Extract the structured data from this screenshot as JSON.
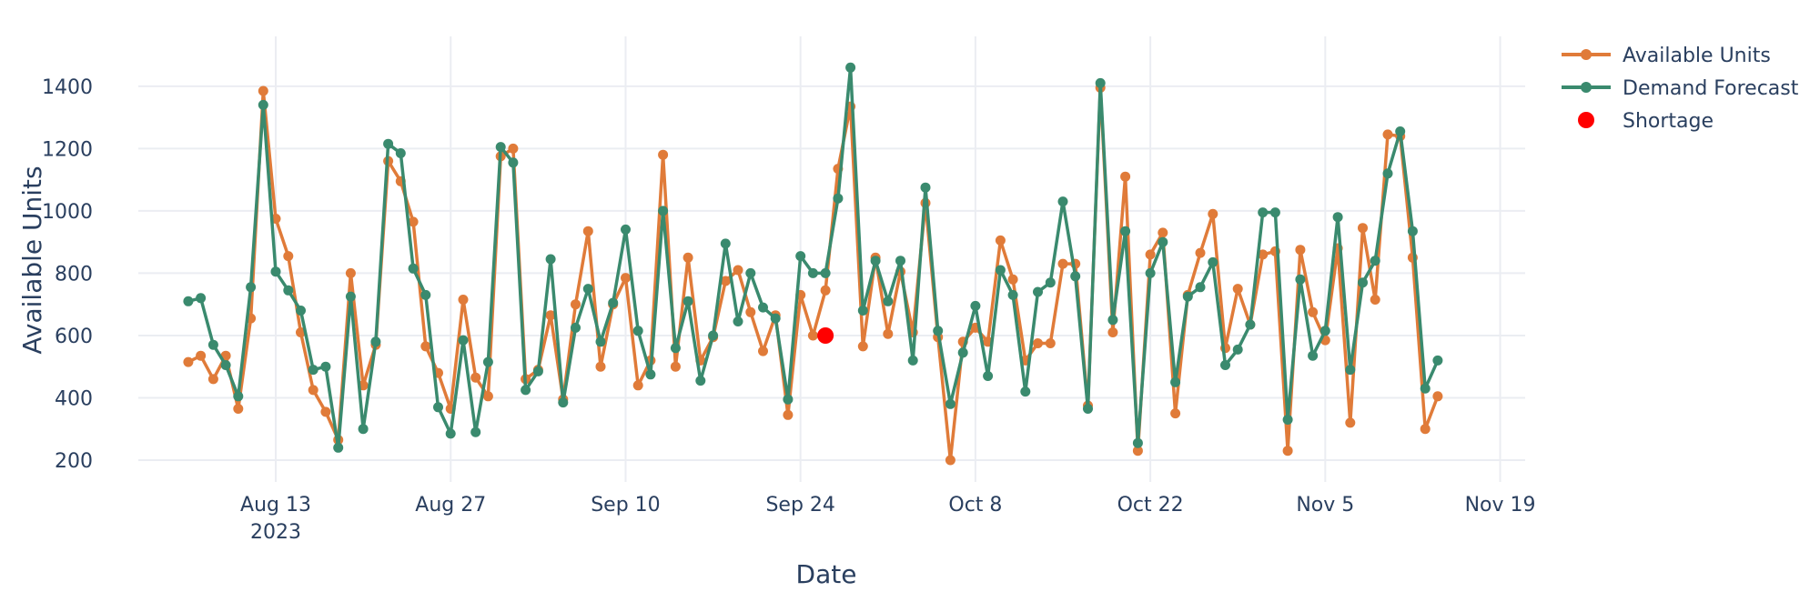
{
  "chart_data": {
    "type": "line",
    "xlabel": "Date",
    "ylabel": "Available Units",
    "ylim": [
      130,
      1560
    ],
    "xlim": [
      "2023-08-02",
      "2023-11-21"
    ],
    "yticks": [
      200,
      400,
      600,
      800,
      1000,
      1200,
      1400
    ],
    "xticks": [
      {
        "date": "2023-08-13",
        "label": "Aug 13",
        "sublabel": "2023"
      },
      {
        "date": "2023-08-27",
        "label": "Aug 27",
        "sublabel": ""
      },
      {
        "date": "2023-09-10",
        "label": "Sep 10",
        "sublabel": ""
      },
      {
        "date": "2023-09-24",
        "label": "Sep 24",
        "sublabel": ""
      },
      {
        "date": "2023-10-08",
        "label": "Oct 8",
        "sublabel": ""
      },
      {
        "date": "2023-10-22",
        "label": "Oct 22",
        "sublabel": ""
      },
      {
        "date": "2023-11-05",
        "label": "Nov 5",
        "sublabel": ""
      },
      {
        "date": "2023-11-19",
        "label": "Nov 19",
        "sublabel": ""
      }
    ],
    "start_date": "2023-08-06",
    "series": [
      {
        "name": "Available Units",
        "color": "#e07b39",
        "values": [
          515,
          535,
          460,
          535,
          365,
          655,
          1385,
          975,
          855,
          610,
          425,
          355,
          265,
          800,
          440,
          570,
          1160,
          1095,
          965,
          565,
          480,
          365,
          715,
          465,
          405,
          1175,
          1200,
          460,
          490,
          665,
          395,
          700,
          935,
          500,
          700,
          785,
          440,
          520,
          1180,
          500,
          850,
          520,
          595,
          775,
          810,
          675,
          550,
          665,
          345,
          730,
          600,
          745,
          1135,
          1335,
          565,
          850,
          605,
          805,
          610,
          1025,
          595,
          200,
          580,
          625,
          580,
          905,
          780,
          520,
          575,
          575,
          830,
          830,
          375,
          1395,
          610,
          1110,
          230,
          860,
          930,
          350,
          730,
          865,
          990,
          560,
          750,
          635,
          860,
          870,
          230,
          875,
          675,
          585,
          880,
          320,
          945,
          715,
          1245,
          1240,
          850,
          300,
          405
        ]
      },
      {
        "name": "Demand Forecast",
        "color": "#3a8a6e",
        "values": [
          710,
          720,
          570,
          505,
          405,
          755,
          1340,
          805,
          745,
          680,
          490,
          500,
          240,
          725,
          300,
          580,
          1215,
          1185,
          815,
          730,
          370,
          285,
          585,
          290,
          515,
          1205,
          1155,
          425,
          485,
          845,
          385,
          625,
          750,
          580,
          705,
          940,
          615,
          475,
          1000,
          560,
          710,
          455,
          600,
          895,
          645,
          800,
          690,
          655,
          395,
          855,
          800,
          800,
          1040,
          1460,
          680,
          840,
          710,
          840,
          520,
          1075,
          615,
          380,
          545,
          695,
          470,
          810,
          730,
          420,
          740,
          770,
          1030,
          790,
          365,
          1410,
          650,
          935,
          255,
          800,
          900,
          450,
          725,
          755,
          835,
          505,
          555,
          635,
          995,
          995,
          330,
          780,
          535,
          615,
          980,
          490,
          770,
          840,
          1120,
          1255,
          935,
          430,
          520
        ]
      }
    ],
    "markers": [
      {
        "name": "Shortage",
        "date": "2023-09-26",
        "value": 600,
        "color": "#ff0000"
      }
    ],
    "legend": {
      "position": "top-right",
      "entries": [
        {
          "label": "Available Units",
          "color": "#e07b39",
          "symbol": "line-marker"
        },
        {
          "label": "Demand Forecast",
          "color": "#3a8a6e",
          "symbol": "line-marker"
        },
        {
          "label": "Shortage",
          "color": "#ff0000",
          "symbol": "marker"
        }
      ]
    }
  }
}
